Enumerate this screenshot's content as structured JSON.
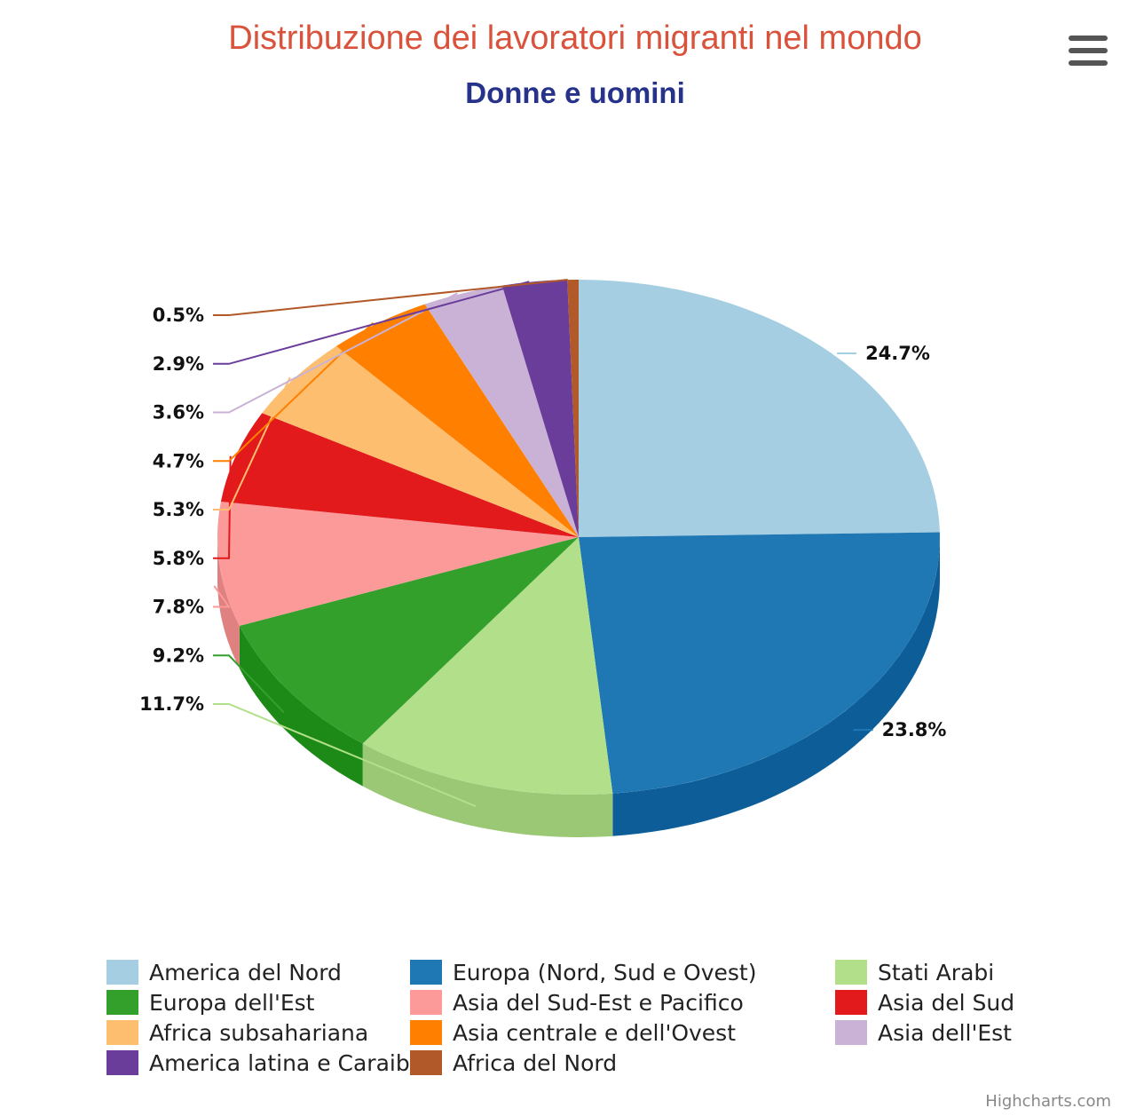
{
  "chart_data": {
    "type": "pie",
    "title": "Distribuzione dei lavoratori migranti nel mondo",
    "subtitle": "Donne e uomini",
    "unit": "%",
    "slices": [
      {
        "name": "America del Nord",
        "value": 24.7,
        "label": "24.7%",
        "color": "#a6cee3",
        "side": "#86b3cb"
      },
      {
        "name": "Europa (Nord, Sud e Ovest)",
        "value": 23.8,
        "label": "23.8%",
        "color": "#1f78b4",
        "side": "#0d5e98"
      },
      {
        "name": "Stati Arabi",
        "value": 11.7,
        "label": "11.7%",
        "color": "#b2df8a",
        "side": "#9bc874"
      },
      {
        "name": "Europa dell'Est",
        "value": 9.2,
        "label": "9.2%",
        "color": "#33a02c",
        "side": "#1d8a17"
      },
      {
        "name": "Asia del Sud-Est e Pacifico",
        "value": 7.8,
        "label": "7.8%",
        "color": "#fb9a99",
        "side": "#df8180"
      },
      {
        "name": "Asia del Sud",
        "value": 5.8,
        "label": "5.8%",
        "color": "#e31a1c",
        "side": "#c40d10"
      },
      {
        "name": "Africa subsahariana",
        "value": 5.3,
        "label": "5.3%",
        "color": "#fdbf6f",
        "side": "#e2a556"
      },
      {
        "name": "Asia centrale e dell'Ovest",
        "value": 4.7,
        "label": "4.7%",
        "color": "#ff7f00",
        "side": "#dc6b00"
      },
      {
        "name": "Asia dell'Est",
        "value": 3.6,
        "label": "3.6%",
        "color": "#cab2d6",
        "side": "#b096bd"
      },
      {
        "name": "America latina e Caraibi",
        "value": 2.9,
        "label": "2.9%",
        "color": "#6a3d9a",
        "side": "#54297f"
      },
      {
        "name": "Africa del Nord",
        "value": 0.5,
        "label": "0.5%",
        "color": "#b15928",
        "side": "#934418"
      }
    ],
    "legend_position": "bottom"
  },
  "credits": "Highcharts.com",
  "menu_icon": "hamburger-menu-icon"
}
